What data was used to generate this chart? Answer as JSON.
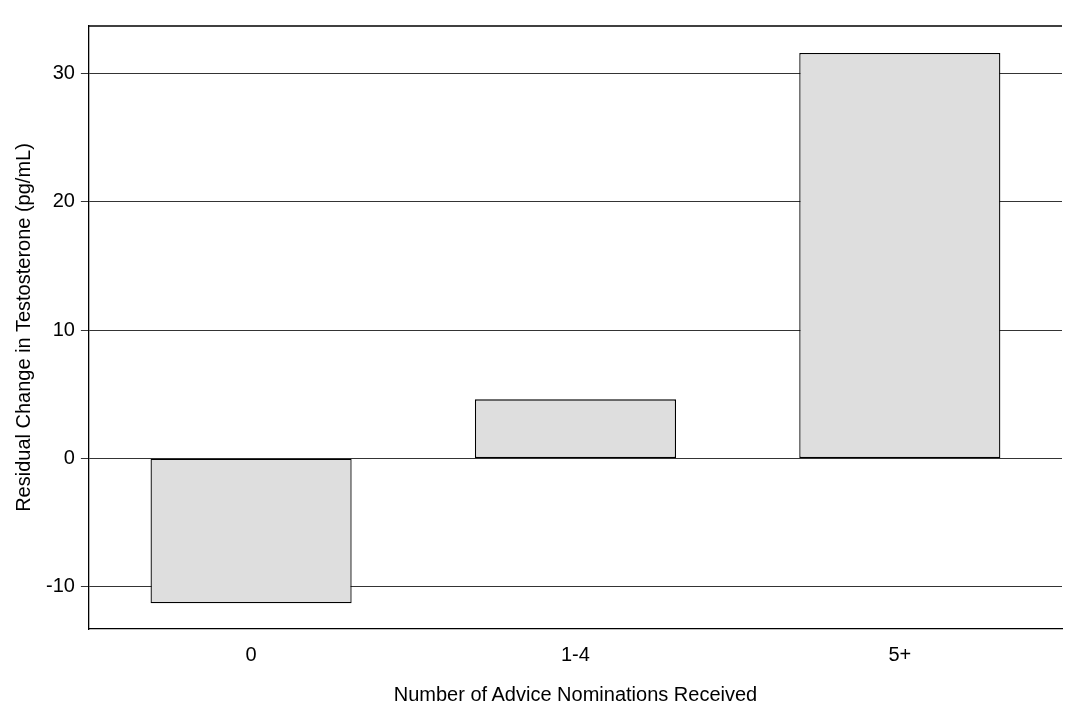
{
  "chart_data": {
    "type": "bar",
    "xlabel": "Number of Advice Nominations Received",
    "ylabel": "Residual Change in Testosterone (pg/mL)",
    "categories": [
      "0",
      "1-4",
      "5+"
    ],
    "values": [
      -11.3,
      4.6,
      31.6
    ],
    "color": "#dedede",
    "ylim": [
      -13.3,
      33.7
    ],
    "yticks": [
      -10,
      0,
      10,
      20,
      30
    ],
    "grid": "y",
    "legend": false
  }
}
